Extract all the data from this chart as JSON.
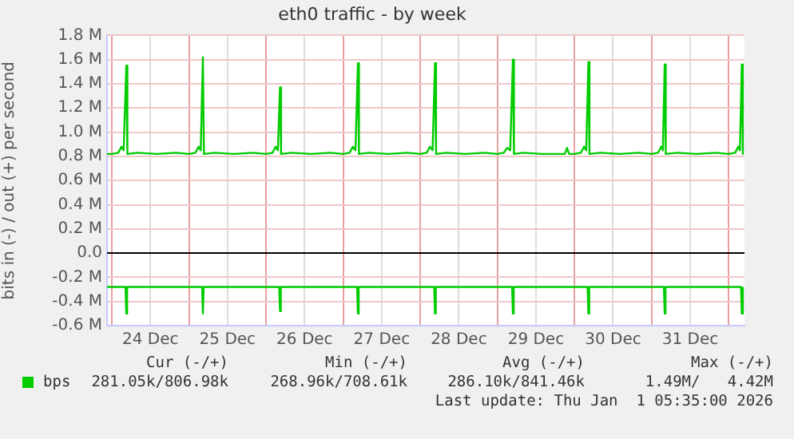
{
  "chart_data": {
    "type": "line",
    "title": "eth0 traffic - by week",
    "ylabel": "bits in (-) / out (+) per second",
    "xlim": [
      "2025-12-23T22:30",
      "2026-01-01T04:55"
    ],
    "xticks": [
      {
        "value": "2025-12-24T00:00",
        "label": null
      },
      {
        "value": "2025-12-24T12:00",
        "label": "24 Dec"
      },
      {
        "value": "2025-12-25T00:00",
        "label": null
      },
      {
        "value": "2025-12-25T12:00",
        "label": "25 Dec"
      },
      {
        "value": "2025-12-26T00:00",
        "label": null
      },
      {
        "value": "2025-12-26T12:00",
        "label": "26 Dec"
      },
      {
        "value": "2025-12-27T00:00",
        "label": null
      },
      {
        "value": "2025-12-27T12:00",
        "label": "27 Dec"
      },
      {
        "value": "2025-12-28T00:00",
        "label": null
      },
      {
        "value": "2025-12-28T12:00",
        "label": "28 Dec"
      },
      {
        "value": "2025-12-29T00:00",
        "label": null
      },
      {
        "value": "2025-12-29T12:00",
        "label": "29 Dec"
      },
      {
        "value": "2025-12-30T00:00",
        "label": null
      },
      {
        "value": "2025-12-30T12:00",
        "label": "30 Dec"
      },
      {
        "value": "2025-12-31T00:00",
        "label": null
      },
      {
        "value": "2025-12-31T12:00",
        "label": "31 Dec"
      },
      {
        "value": "2026-01-01T00:00",
        "label": null
      }
    ],
    "ylim": [
      -0.6,
      1.8
    ],
    "yticks": [
      {
        "value": -0.6,
        "label": "-0.6 M"
      },
      {
        "value": -0.4,
        "label": "-0.4 M"
      },
      {
        "value": -0.2,
        "label": "-0.2 M"
      },
      {
        "value": 0,
        "label": "0.0"
      },
      {
        "value": 0.2,
        "label": "0.2 M"
      },
      {
        "value": 0.4,
        "label": "0.4 M"
      },
      {
        "value": 0.6,
        "label": "0.6 M"
      },
      {
        "value": 0.8,
        "label": "0.8 M"
      },
      {
        "value": 1.0,
        "label": "1.0 M"
      },
      {
        "value": 1.2,
        "label": "1.2 M"
      },
      {
        "value": 1.4,
        "label": "1.4 M"
      },
      {
        "value": 1.6,
        "label": "1.6 M"
      },
      {
        "value": 1.8,
        "label": "1.8 M"
      }
    ],
    "grid": true,
    "legend": "bottom left",
    "marker": "none",
    "line_style": "solid",
    "ref_lines": [
      {
        "axis": "y",
        "value": 0,
        "label": null,
        "color": "#000000"
      }
    ],
    "series": [
      {
        "name": "bps",
        "color": "#00cc00",
        "x": [
          "2025-12-23T22:30",
          "2025-12-24T00:00",
          "2025-12-24T02:00",
          "2025-12-24T03:00",
          "2025-12-24T03:40",
          "2025-12-24T04:30",
          "2025-12-24T04:50",
          "2025-12-24T08:00",
          "2025-12-24T14:00",
          "2025-12-24T20:00",
          "2025-12-25T00:00",
          "2025-12-25T02:00",
          "2025-12-25T03:00",
          "2025-12-25T03:40",
          "2025-12-25T04:20",
          "2025-12-25T04:40",
          "2025-12-25T08:00",
          "2025-12-25T14:00",
          "2025-12-25T20:00",
          "2025-12-26T00:00",
          "2025-12-26T02:00",
          "2025-12-26T03:00",
          "2025-12-26T03:40",
          "2025-12-26T04:20",
          "2025-12-26T04:40",
          "2025-12-26T08:00",
          "2025-12-26T14:00",
          "2025-12-26T20:00",
          "2025-12-27T00:00",
          "2025-12-27T02:00",
          "2025-12-27T03:00",
          "2025-12-27T03:50",
          "2025-12-27T04:35",
          "2025-12-27T04:55",
          "2025-12-27T08:00",
          "2025-12-27T14:00",
          "2025-12-27T20:00",
          "2025-12-28T00:00",
          "2025-12-28T02:00",
          "2025-12-28T03:00",
          "2025-12-28T03:50",
          "2025-12-28T04:35",
          "2025-12-28T04:55",
          "2025-12-28T08:00",
          "2025-12-28T14:00",
          "2025-12-28T20:00",
          "2025-12-29T00:00",
          "2025-12-29T02:00",
          "2025-12-29T03:00",
          "2025-12-29T04:00",
          "2025-12-29T04:50",
          "2025-12-29T05:10",
          "2025-12-29T08:00",
          "2025-12-29T14:00",
          "2025-12-29T21:00",
          "2025-12-29T21:40",
          "2025-12-29T22:20",
          "2025-12-30T00:00",
          "2025-12-30T02:00",
          "2025-12-30T03:00",
          "2025-12-30T03:40",
          "2025-12-30T04:20",
          "2025-12-30T04:40",
          "2025-12-30T08:00",
          "2025-12-30T14:00",
          "2025-12-30T20:00",
          "2025-12-31T00:00",
          "2025-12-31T02:00",
          "2025-12-31T03:00",
          "2025-12-31T03:30",
          "2025-12-31T04:05",
          "2025-12-31T04:25",
          "2025-12-31T08:00",
          "2025-12-31T14:00",
          "2025-12-31T20:00",
          "2026-01-01T00:00",
          "2026-01-01T02:00",
          "2026-01-01T03:00",
          "2026-01-01T03:30",
          "2026-01-01T04:05",
          "2026-01-01T04:25"
        ],
        "values": [
          0.82,
          0.82,
          0.83,
          0.88,
          0.85,
          1.55,
          0.82,
          0.83,
          0.82,
          0.83,
          0.82,
          0.83,
          0.88,
          0.85,
          1.62,
          0.82,
          0.83,
          0.82,
          0.83,
          0.82,
          0.83,
          0.88,
          0.85,
          1.37,
          0.82,
          0.83,
          0.82,
          0.83,
          0.82,
          0.83,
          0.88,
          0.85,
          1.57,
          0.82,
          0.83,
          0.82,
          0.83,
          0.82,
          0.83,
          0.88,
          0.85,
          1.57,
          0.82,
          0.83,
          0.82,
          0.83,
          0.82,
          0.83,
          0.87,
          0.85,
          1.6,
          0.82,
          0.83,
          0.82,
          0.82,
          0.87,
          0.82,
          0.82,
          0.83,
          0.88,
          0.85,
          1.58,
          0.82,
          0.83,
          0.82,
          0.83,
          0.82,
          0.83,
          0.88,
          0.85,
          1.56,
          0.82,
          0.83,
          0.82,
          0.83,
          0.82,
          0.83,
          0.88,
          0.85,
          1.56,
          0.82
        ]
      },
      {
        "color": "#00cc00",
        "x": [
          "2025-12-23T22:30",
          "2025-12-24T04:15",
          "2025-12-24T04:30",
          "2025-12-24T04:45",
          "2025-12-24T14:00",
          "2025-12-25T04:05",
          "2025-12-25T04:20",
          "2025-12-25T04:35",
          "2025-12-25T14:00",
          "2025-12-26T04:05",
          "2025-12-26T04:20",
          "2025-12-26T04:35",
          "2025-12-26T14:00",
          "2025-12-27T04:20",
          "2025-12-27T04:35",
          "2025-12-27T04:50",
          "2025-12-27T14:00",
          "2025-12-28T04:20",
          "2025-12-28T04:35",
          "2025-12-28T04:50",
          "2025-12-28T14:00",
          "2025-12-29T04:35",
          "2025-12-29T04:50",
          "2025-12-29T05:05",
          "2025-12-29T14:00",
          "2025-12-30T04:05",
          "2025-12-30T04:20",
          "2025-12-30T04:35",
          "2025-12-30T14:00",
          "2025-12-31T03:50",
          "2025-12-31T04:05",
          "2025-12-31T04:20",
          "2025-12-31T14:00",
          "2026-01-01T03:50",
          "2026-01-01T04:05",
          "2026-01-01T04:25"
        ],
        "values": [
          -0.28,
          -0.28,
          -0.5,
          -0.28,
          -0.28,
          -0.28,
          -0.5,
          -0.28,
          -0.28,
          -0.28,
          -0.48,
          -0.28,
          -0.28,
          -0.28,
          -0.5,
          -0.28,
          -0.28,
          -0.28,
          -0.5,
          -0.28,
          -0.28,
          -0.28,
          -0.5,
          -0.28,
          -0.28,
          -0.28,
          -0.5,
          -0.28,
          -0.28,
          -0.28,
          -0.5,
          -0.28,
          -0.28,
          -0.28,
          -0.5,
          -0.28
        ]
      }
    ],
    "annotations": [
      "Cur (-/+)",
      "Min (-/+)",
      "Avg (-/+)",
      "Max (-/+)",
      "281.05k/806.98k",
      "268.96k/708.61k",
      "286.10k/841.46k",
      "1.49M/   4.42M",
      "Last update: Thu Jan  1 05:35:00 2026"
    ]
  }
}
